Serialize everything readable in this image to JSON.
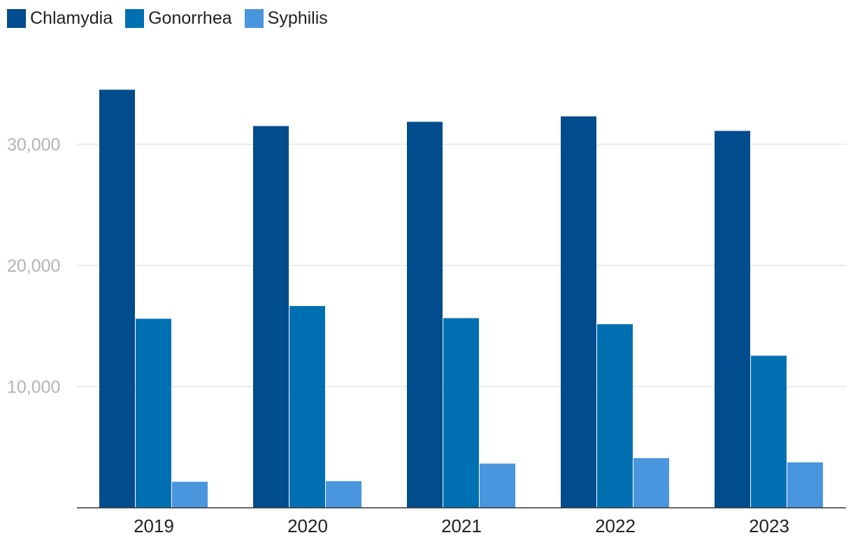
{
  "colors": {
    "chlamydia": "#004c8c",
    "gonorrhea": "#0070b3",
    "syphilis": "#4a96de",
    "grid": "#e6e6e6",
    "axis": "#333333"
  },
  "chart_data": {
    "type": "bar",
    "categories": [
      "2019",
      "2020",
      "2021",
      "2022",
      "2023"
    ],
    "series": [
      {
        "name": "Chlamydia",
        "values": [
          34500,
          31500,
          31850,
          32300,
          31100
        ]
      },
      {
        "name": "Gonorrhea",
        "values": [
          15600,
          16650,
          15650,
          15150,
          12550
        ]
      },
      {
        "name": "Syphilis",
        "values": [
          2150,
          2200,
          3650,
          4100,
          3750
        ]
      }
    ],
    "yticks": [
      10000,
      20000,
      30000
    ],
    "ytick_labels": [
      "10,000",
      "20,000",
      "30,000"
    ],
    "ylim": [
      0,
      37000
    ],
    "legend_position": "top-left",
    "grid": true
  }
}
